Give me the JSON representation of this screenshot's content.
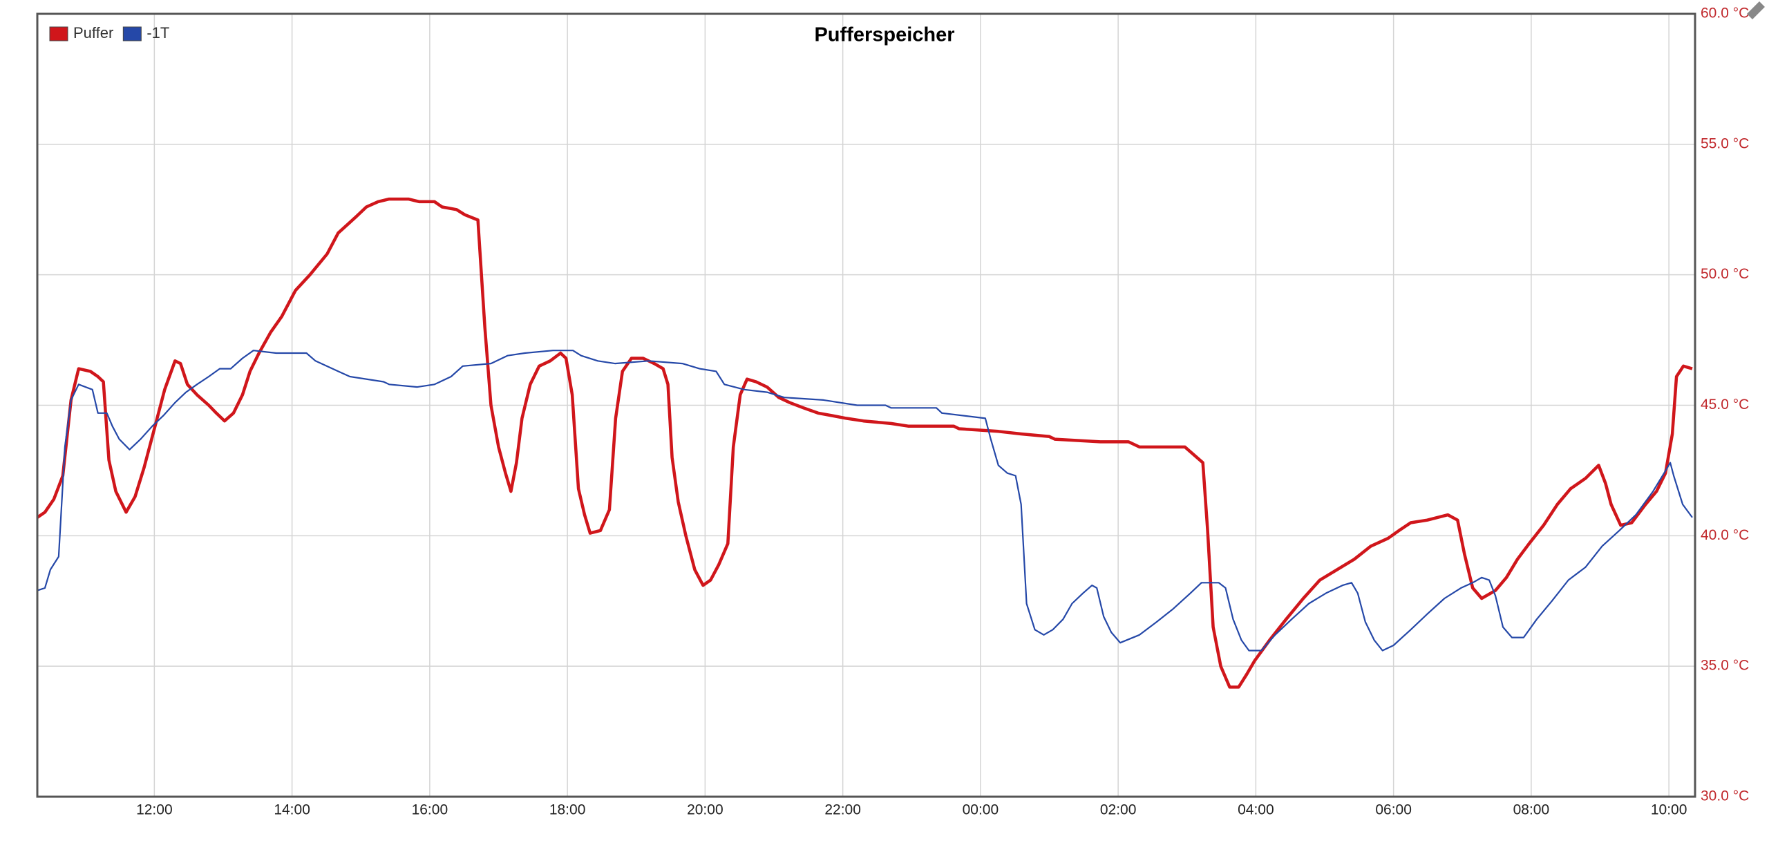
{
  "chart_data": {
    "type": "line",
    "title": "Pufferspeicher",
    "xlim": [
      10.3,
      34.38
    ],
    "xticks": [
      {
        "value": 12,
        "label": "12:00"
      },
      {
        "value": 14,
        "label": "14:00"
      },
      {
        "value": 16,
        "label": "16:00"
      },
      {
        "value": 18,
        "label": "18:00"
      },
      {
        "value": 20,
        "label": "20:00"
      },
      {
        "value": 22,
        "label": "22:00"
      },
      {
        "value": 24,
        "label": "00:00"
      },
      {
        "value": 26,
        "label": "02:00"
      },
      {
        "value": 28,
        "label": "04:00"
      },
      {
        "value": 30,
        "label": "06:00"
      },
      {
        "value": 32,
        "label": "08:00"
      },
      {
        "value": 34,
        "label": "10:00"
      }
    ],
    "ylim": [
      30,
      60
    ],
    "yticks": [
      {
        "value": 30,
        "label": "30.0 °C"
      },
      {
        "value": 35,
        "label": "35.0 °C"
      },
      {
        "value": 40,
        "label": "40.0 °C"
      },
      {
        "value": 45,
        "label": "45.0 °C"
      },
      {
        "value": 50,
        "label": "50.0 °C"
      },
      {
        "value": 55,
        "label": "55.0 °C"
      },
      {
        "value": 60,
        "label": "60.0 °C"
      }
    ],
    "grid": true,
    "legend": "top-left",
    "series": [
      {
        "name": "Puffer",
        "color": "#d0161b",
        "x": [
          10.3,
          10.41,
          10.54,
          10.67,
          10.79,
          10.9,
          11.07,
          11.18,
          11.26,
          11.34,
          11.44,
          11.59,
          11.72,
          11.85,
          12.0,
          12.15,
          12.3,
          12.38,
          12.48,
          12.62,
          12.79,
          12.9,
          13.02,
          13.15,
          13.28,
          13.39,
          13.52,
          13.69,
          13.85,
          14.05,
          14.26,
          14.51,
          14.67,
          14.92,
          15.08,
          15.25,
          15.41,
          15.52,
          15.69,
          15.85,
          16.07,
          16.18,
          16.39,
          16.51,
          16.7,
          16.8,
          16.89,
          17.0,
          17.1,
          17.18,
          17.26,
          17.34,
          17.46,
          17.59,
          17.75,
          17.9,
          17.98,
          18.07,
          18.16,
          18.25,
          18.33,
          18.48,
          18.61,
          18.7,
          18.8,
          18.93,
          19.1,
          19.26,
          19.39,
          19.46,
          19.52,
          19.61,
          19.72,
          19.85,
          19.97,
          20.08,
          20.2,
          20.33,
          20.41,
          20.51,
          20.61,
          20.74,
          20.9,
          21.07,
          21.23,
          21.43,
          21.64,
          21.85,
          22.05,
          22.3,
          22.7,
          22.95,
          23.61,
          23.69,
          24.26,
          24.59,
          25.0,
          25.08,
          25.74,
          26.15,
          26.31,
          26.97,
          27.23,
          27.3,
          27.38,
          27.49,
          27.62,
          27.75,
          27.87,
          27.98,
          28.2,
          28.44,
          28.69,
          28.93,
          29.18,
          29.43,
          29.67,
          29.92,
          30.08,
          30.25,
          30.49,
          30.79,
          30.93,
          31.03,
          31.15,
          31.28,
          31.48,
          31.64,
          31.8,
          31.97,
          32.18,
          32.38,
          32.57,
          32.79,
          32.98,
          33.08,
          33.16,
          33.3,
          33.46,
          33.66,
          33.82,
          33.95,
          34.05,
          34.11,
          34.21,
          34.34
        ],
        "values": [
          40.7,
          40.9,
          41.4,
          42.3,
          45.2,
          46.4,
          46.3,
          46.1,
          45.9,
          42.9,
          41.7,
          40.9,
          41.5,
          42.6,
          44.1,
          45.6,
          46.7,
          46.6,
          45.8,
          45.4,
          45.0,
          44.7,
          44.4,
          44.7,
          45.4,
          46.3,
          47.0,
          47.8,
          48.4,
          49.4,
          50.0,
          50.8,
          51.6,
          52.2,
          52.6,
          52.8,
          52.9,
          52.9,
          52.9,
          52.8,
          52.8,
          52.6,
          52.5,
          52.3,
          52.1,
          48.0,
          45.0,
          43.4,
          42.4,
          41.7,
          42.8,
          44.5,
          45.8,
          46.5,
          46.7,
          47.0,
          46.8,
          45.4,
          41.8,
          40.8,
          40.1,
          40.2,
          41.0,
          44.5,
          46.3,
          46.8,
          46.8,
          46.6,
          46.4,
          45.8,
          43.0,
          41.3,
          40.0,
          38.7,
          38.1,
          38.3,
          38.9,
          39.7,
          43.4,
          45.4,
          46.0,
          45.9,
          45.7,
          45.3,
          45.1,
          44.9,
          44.7,
          44.6,
          44.5,
          44.4,
          44.3,
          44.2,
          44.2,
          44.1,
          44.0,
          43.9,
          43.8,
          43.7,
          43.6,
          43.6,
          43.4,
          43.4,
          42.8,
          40.2,
          36.5,
          35.0,
          34.2,
          34.2,
          34.7,
          35.2,
          36.0,
          36.8,
          37.6,
          38.3,
          38.7,
          39.1,
          39.6,
          39.9,
          40.2,
          40.5,
          40.6,
          40.8,
          40.6,
          39.3,
          38.0,
          37.6,
          37.9,
          38.4,
          39.1,
          39.7,
          40.4,
          41.2,
          41.8,
          42.2,
          42.7,
          42.0,
          41.2,
          40.4,
          40.5,
          41.2,
          41.7,
          42.4,
          43.9,
          46.1,
          46.5,
          46.4
        ]
      },
      {
        "name": "-1T",
        "color": "#2548a8",
        "x": [
          10.3,
          10.41,
          10.49,
          10.61,
          10.7,
          10.79,
          10.9,
          11.1,
          11.18,
          11.31,
          11.39,
          11.49,
          11.64,
          11.8,
          11.97,
          12.13,
          12.3,
          12.46,
          12.62,
          12.79,
          12.95,
          13.11,
          13.28,
          13.44,
          13.77,
          14.21,
          14.34,
          14.67,
          14.84,
          15.33,
          15.41,
          15.82,
          16.07,
          16.31,
          16.48,
          16.89,
          17.13,
          17.38,
          17.79,
          18.08,
          18.2,
          18.44,
          18.69,
          19.18,
          19.67,
          19.92,
          20.16,
          20.28,
          20.57,
          20.9,
          21.15,
          21.72,
          22.21,
          22.62,
          22.7,
          23.36,
          23.44,
          24.07,
          24.15,
          24.26,
          24.39,
          24.51,
          24.59,
          24.67,
          24.79,
          24.92,
          25.05,
          25.2,
          25.33,
          25.49,
          25.62,
          25.69,
          25.79,
          25.9,
          26.03,
          26.31,
          26.56,
          26.8,
          27.05,
          27.21,
          27.46,
          27.56,
          27.67,
          27.79,
          27.9,
          28.08,
          28.28,
          28.52,
          28.77,
          29.02,
          29.26,
          29.39,
          29.48,
          29.59,
          29.72,
          29.84,
          30.0,
          30.25,
          30.49,
          30.74,
          30.98,
          31.15,
          31.28,
          31.39,
          31.48,
          31.59,
          31.72,
          31.89,
          32.08,
          32.3,
          32.54,
          32.79,
          33.03,
          33.28,
          33.52,
          33.77,
          33.93,
          34.02,
          34.07,
          34.2,
          34.34
        ],
        "values": [
          37.9,
          38.0,
          38.7,
          39.2,
          43.4,
          45.2,
          45.8,
          45.6,
          44.7,
          44.7,
          44.2,
          43.7,
          43.3,
          43.7,
          44.2,
          44.6,
          45.1,
          45.5,
          45.8,
          46.1,
          46.4,
          46.4,
          46.8,
          47.1,
          47.0,
          47.0,
          46.7,
          46.3,
          46.1,
          45.9,
          45.8,
          45.7,
          45.8,
          46.1,
          46.5,
          46.6,
          46.9,
          47.0,
          47.1,
          47.1,
          46.9,
          46.7,
          46.6,
          46.7,
          46.6,
          46.4,
          46.3,
          45.8,
          45.6,
          45.5,
          45.3,
          45.2,
          45.0,
          45.0,
          44.9,
          44.9,
          44.7,
          44.5,
          43.7,
          42.7,
          42.4,
          42.3,
          41.2,
          37.4,
          36.4,
          36.2,
          36.4,
          36.8,
          37.4,
          37.8,
          38.1,
          38.0,
          36.9,
          36.3,
          35.9,
          36.2,
          36.7,
          37.2,
          37.8,
          38.2,
          38.2,
          38.0,
          36.8,
          36.0,
          35.6,
          35.6,
          36.2,
          36.8,
          37.4,
          37.8,
          38.1,
          38.2,
          37.8,
          36.7,
          36.0,
          35.6,
          35.8,
          36.4,
          37.0,
          37.6,
          38.0,
          38.2,
          38.4,
          38.3,
          37.7,
          36.5,
          36.1,
          36.1,
          36.8,
          37.5,
          38.3,
          38.8,
          39.6,
          40.2,
          40.8,
          41.7,
          42.4,
          42.8,
          42.3,
          41.2,
          40.7
        ]
      }
    ]
  }
}
